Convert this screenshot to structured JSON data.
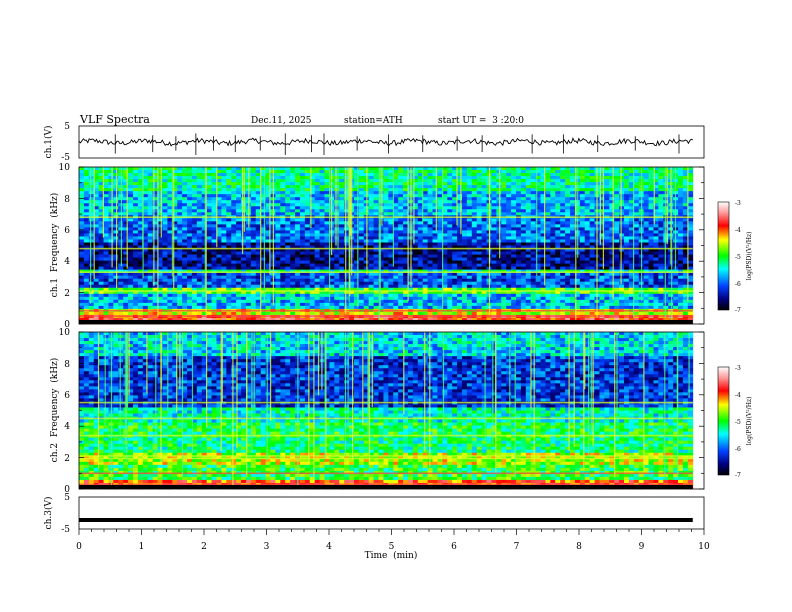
{
  "header": {
    "title": "VLF Spectra",
    "date": "Dec.11, 2025",
    "station": "station=ATH",
    "start": "start UT =  3 :20:0"
  },
  "chart_data": [
    {
      "type": "line",
      "name": "ch1-waveform",
      "ylabel": "ch.1(V)",
      "ylim": [
        -5,
        5
      ],
      "yticks": [
        "5",
        "-5"
      ],
      "xlim": [
        0,
        10
      ],
      "x_extent": [
        0,
        9.82
      ],
      "baseline": 0,
      "amplitude": 1.6,
      "spikes": [
        [
          0.58,
          4
        ],
        [
          1.18,
          3.5
        ],
        [
          1.55,
          3
        ],
        [
          1.87,
          4.5
        ],
        [
          2.15,
          3
        ],
        [
          2.5,
          3.5
        ],
        [
          2.9,
          3
        ],
        [
          3.3,
          4.5
        ],
        [
          3.72,
          3.5
        ],
        [
          3.92,
          4.5
        ],
        [
          4.45,
          3
        ],
        [
          4.95,
          4
        ],
        [
          5.5,
          3.5
        ],
        [
          6.05,
          3
        ],
        [
          6.45,
          3.5
        ],
        [
          7.25,
          4
        ],
        [
          7.75,
          4
        ],
        [
          8.3,
          3.5
        ],
        [
          8.9,
          3
        ],
        [
          9.6,
          4
        ]
      ]
    },
    {
      "type": "heatmap",
      "name": "ch1-spectrogram",
      "ylabel": "ch.1  Frequency  (kHz)",
      "ylim": [
        0,
        10
      ],
      "yticks": [
        "10",
        "8",
        "6",
        "4",
        "2",
        "0"
      ],
      "xlim": [
        0,
        10
      ],
      "x_extent": [
        0,
        9.82
      ],
      "zlim": [
        -7,
        -3
      ],
      "colorbar_label": "log(PSD)(V²/Hz)",
      "colorbar_ticks": [
        "-3",
        "-4",
        "-5",
        "-6",
        "-7"
      ],
      "bands": [
        {
          "f0": 0,
          "f1": 0.5,
          "level": -3.8
        },
        {
          "f0": 0.5,
          "f1": 1.0,
          "level": -4.5
        },
        {
          "f0": 1.0,
          "f1": 2.0,
          "level": -5.7
        },
        {
          "f0": 2.0,
          "f1": 2.35,
          "level": -4.9
        },
        {
          "f0": 2.35,
          "f1": 3.2,
          "level": -6.1
        },
        {
          "f0": 3.2,
          "f1": 3.5,
          "level": -5.3
        },
        {
          "f0": 3.5,
          "f1": 5.2,
          "level": -6.5
        },
        {
          "f0": 5.2,
          "f1": 7.0,
          "level": -6.0
        },
        {
          "f0": 7.0,
          "f1": 8.5,
          "level": -5.7
        },
        {
          "f0": 8.5,
          "f1": 10,
          "level": -5.3
        }
      ],
      "lines_khz": [
        0.2,
        0.5,
        0.85,
        2.1,
        3.3,
        4.8,
        6.8
      ]
    },
    {
      "type": "heatmap",
      "name": "ch2-spectrogram",
      "ylabel": "ch.2  Frequency  (kHz)",
      "ylim": [
        0,
        10
      ],
      "yticks": [
        "10",
        "8",
        "6",
        "4",
        "2",
        "0"
      ],
      "xlim": [
        0,
        10
      ],
      "x_extent": [
        0,
        9.82
      ],
      "zlim": [
        -7,
        -3
      ],
      "colorbar_label": "log(PSD)(V²/Hz)",
      "colorbar_ticks": [
        "-3",
        "-4",
        "-5",
        "-6",
        "-7"
      ],
      "bands": [
        {
          "f0": 0,
          "f1": 0.5,
          "level": -4.0
        },
        {
          "f0": 0.5,
          "f1": 1.5,
          "level": -5.0
        },
        {
          "f0": 1.5,
          "f1": 2.4,
          "level": -4.6
        },
        {
          "f0": 2.4,
          "f1": 3.3,
          "level": -5.2
        },
        {
          "f0": 3.3,
          "f1": 4.3,
          "level": -5.1
        },
        {
          "f0": 4.3,
          "f1": 5.2,
          "level": -5.4
        },
        {
          "f0": 5.2,
          "f1": 6.5,
          "level": -6.2
        },
        {
          "f0": 6.5,
          "f1": 8.5,
          "level": -6.2
        },
        {
          "f0": 8.5,
          "f1": 10,
          "level": -5.6
        }
      ],
      "lines_khz": [
        0.3,
        1.0,
        1.95,
        2.1,
        3.4,
        4.5,
        5.5
      ]
    },
    {
      "type": "line",
      "name": "ch3-waveform",
      "ylabel": "ch.3(V)",
      "ylim": [
        -5,
        5
      ],
      "yticks": [
        "5",
        "-5"
      ],
      "xlim": [
        0,
        10
      ],
      "x_extent": [
        0,
        9.82
      ],
      "baseline": -2.2,
      "amplitude": 0
    }
  ],
  "x_axis": {
    "label": "Time  (min)",
    "ticks": [
      "0",
      "1",
      "2",
      "3",
      "4",
      "5",
      "6",
      "7",
      "8",
      "9",
      "10"
    ]
  }
}
